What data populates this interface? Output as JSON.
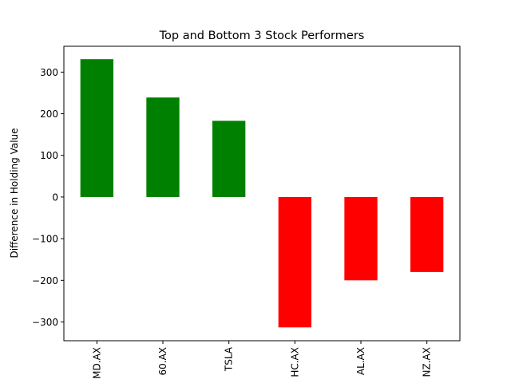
{
  "chart_data": {
    "type": "bar",
    "title": "Top and Bottom 3 Stock Performers",
    "xlabel": "",
    "ylabel": "Difference in Holding Value",
    "categories": [
      "MD.AX",
      "60.AX",
      "TSLA",
      "HC.AX",
      "AL.AX",
      "NZ.AX"
    ],
    "values": [
      331,
      239,
      183,
      -313,
      -200,
      -180
    ],
    "colors": [
      "#008000",
      "#008000",
      "#008000",
      "#ff0000",
      "#ff0000",
      "#ff0000"
    ],
    "ylim": [
      -345,
      362
    ],
    "yticks": [
      -300,
      -200,
      -100,
      0,
      100,
      200,
      300
    ],
    "ytick_labels": [
      "−300",
      "−200",
      "−100",
      "0",
      "100",
      "200",
      "300"
    ],
    "grid": false,
    "legend": "none"
  }
}
